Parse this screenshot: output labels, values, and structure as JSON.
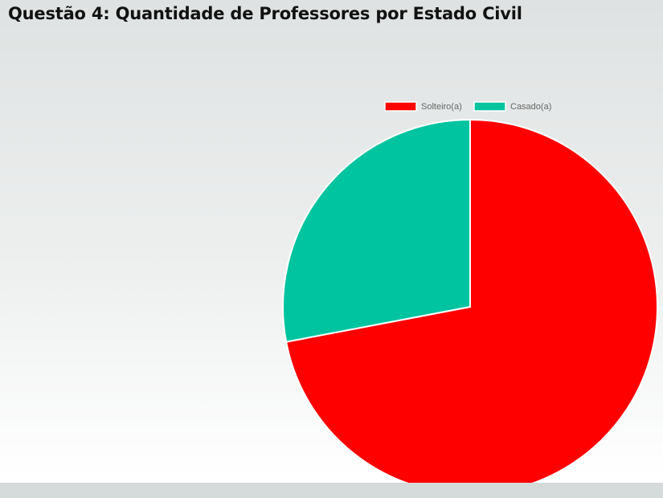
{
  "page": {
    "title": "Questão 4: Quantidade de Professores por Estado Civil"
  },
  "chart_data": {
    "type": "pie",
    "categories": [
      "Solteiro(a)",
      "Casado(a)"
    ],
    "values": [
      72,
      28
    ],
    "colors": [
      "#ff0000",
      "#00c49f"
    ],
    "legend": "top",
    "slice_border_color": "#ffffff",
    "start_angle": "top, clockwise"
  }
}
